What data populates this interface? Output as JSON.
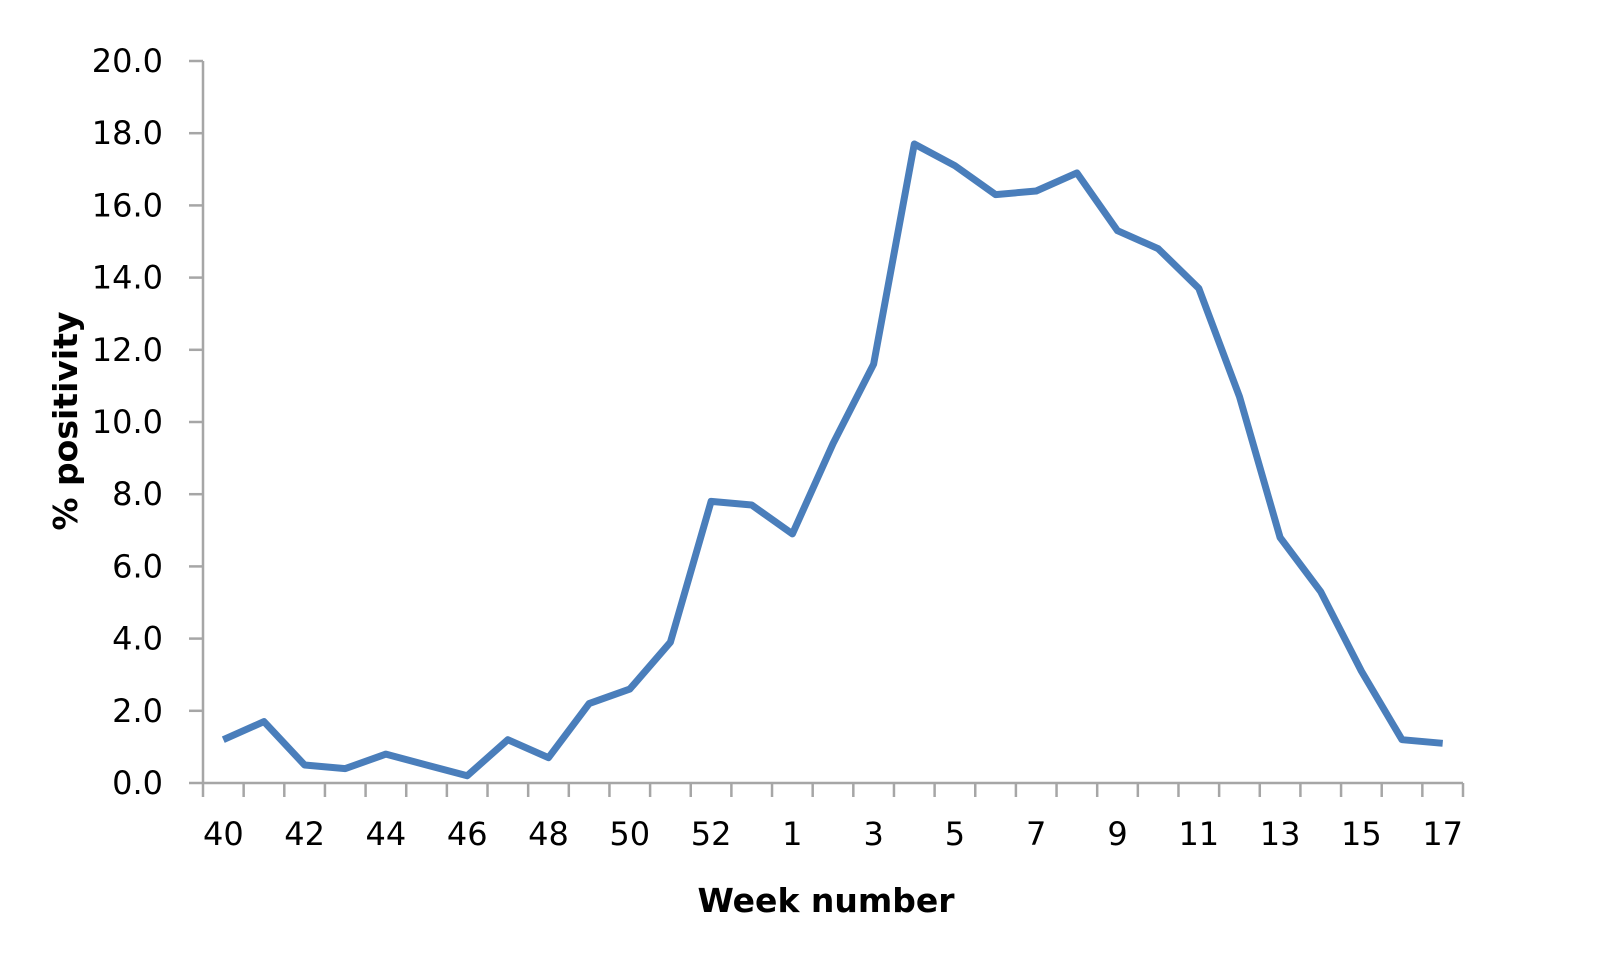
{
  "chart_data": {
    "type": "line",
    "title": "",
    "xlabel": "Week number",
    "ylabel": "% positivity",
    "ylim": [
      0,
      20
    ],
    "yticks": [
      "0.0",
      "2.0",
      "4.0",
      "6.0",
      "8.0",
      "10.0",
      "12.0",
      "14.0",
      "16.0",
      "18.0",
      "20.0"
    ],
    "categories": [
      "40",
      "41",
      "42",
      "43",
      "44",
      "45",
      "46",
      "47",
      "48",
      "49",
      "50",
      "51",
      "52",
      "53",
      "1",
      "2",
      "3",
      "4",
      "5",
      "6",
      "7",
      "8",
      "9",
      "10",
      "11",
      "12",
      "13",
      "14",
      "15",
      "16",
      "17"
    ],
    "x_tick_labels": [
      "40",
      "42",
      "44",
      "46",
      "48",
      "50",
      "52",
      "1",
      "3",
      "5",
      "7",
      "9",
      "11",
      "13",
      "15",
      "17"
    ],
    "series": [
      {
        "values": [
          1.2,
          1.7,
          0.5,
          0.4,
          0.8,
          0.5,
          0.2,
          1.2,
          0.7,
          2.2,
          2.6,
          3.9,
          7.8,
          7.7,
          6.9,
          9.4,
          11.6,
          17.7,
          17.1,
          16.3,
          16.4,
          16.9,
          15.3,
          14.8,
          13.7,
          10.7,
          6.8,
          5.3,
          3.1,
          1.2,
          1.1
        ]
      }
    ],
    "grid": false,
    "legend": "none",
    "line_color": "#4a7ebb",
    "axis_color": "#a6a6a6"
  }
}
